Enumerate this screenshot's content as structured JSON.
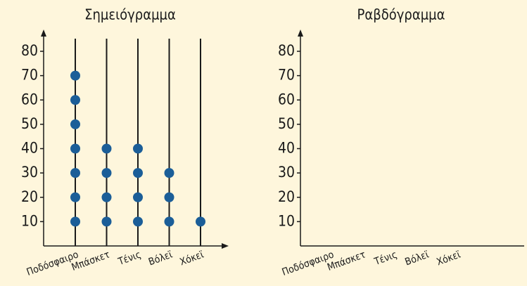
{
  "chart_data": [
    {
      "type": "dot",
      "title": "Σημειόγραμμα",
      "categories": [
        "Ποδόσφαιρο",
        "Μπάσκετ",
        "Τένις",
        "Βόλεϊ",
        "Χόκεϊ"
      ],
      "values": [
        70,
        40,
        40,
        30,
        10
      ],
      "step": 10,
      "color": "#1b5e98",
      "ylim": [
        0,
        80
      ],
      "yticks": [
        10,
        20,
        30,
        40,
        50,
        60,
        70,
        80
      ]
    },
    {
      "type": "bar",
      "title": "Ραβδόγραμμα",
      "categories": [
        "Ποδόσφαιρο",
        "Μπάσκετ",
        "Τένις",
        "Βόλεϊ",
        "Χόκεϊ"
      ],
      "ylim": [
        0,
        80
      ],
      "yticks": [
        10,
        20,
        30,
        40,
        50,
        60,
        70,
        80
      ]
    }
  ]
}
